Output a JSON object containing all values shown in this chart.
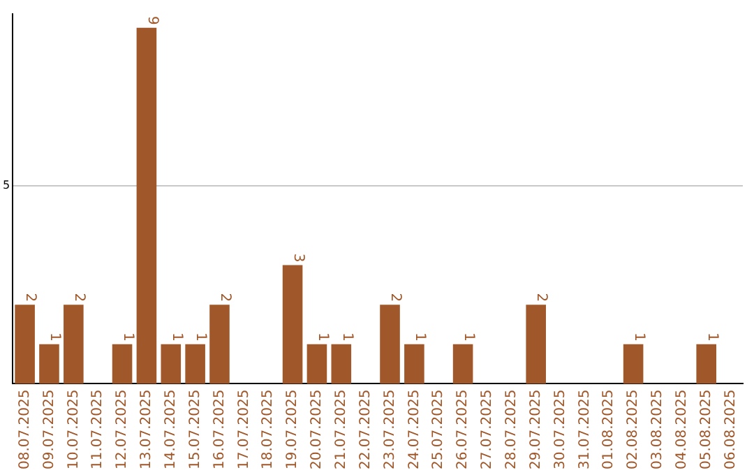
{
  "chart_data": {
    "type": "bar",
    "categories": [
      "08.07.2025",
      "09.07.2025",
      "10.07.2025",
      "11.07.2025",
      "12.07.2025",
      "13.07.2025",
      "14.07.2025",
      "15.07.2025",
      "16.07.2025",
      "17.07.2025",
      "18.07.2025",
      "19.07.2025",
      "20.07.2025",
      "21.07.2025",
      "22.07.2025",
      "23.07.2025",
      "24.07.2025",
      "25.07.2025",
      "26.07.2025",
      "27.07.2025",
      "28.07.2025",
      "29.07.2025",
      "30.07.2025",
      "31.07.2025",
      "01.08.2025",
      "02.08.2025",
      "03.08.2025",
      "04.08.2025",
      "05.08.2025",
      "06.08.2025"
    ],
    "values": [
      2,
      1,
      2,
      0,
      1,
      9,
      1,
      1,
      2,
      0,
      0,
      3,
      1,
      1,
      0,
      2,
      1,
      0,
      1,
      0,
      0,
      2,
      0,
      0,
      0,
      1,
      0,
      0,
      1,
      0
    ],
    "value_labels": [
      "2",
      "1",
      "2",
      null,
      "1",
      "9",
      "1",
      "1",
      "2",
      null,
      null,
      "3",
      "1",
      "1",
      null,
      "2",
      "1",
      null,
      "1",
      null,
      null,
      "2",
      null,
      null,
      null,
      "1",
      null,
      null,
      "1",
      null
    ],
    "color": "#a0582a",
    "ylim": [
      0,
      9.35
    ],
    "yticks": [
      5
    ],
    "grid": "y",
    "legend": false
  }
}
